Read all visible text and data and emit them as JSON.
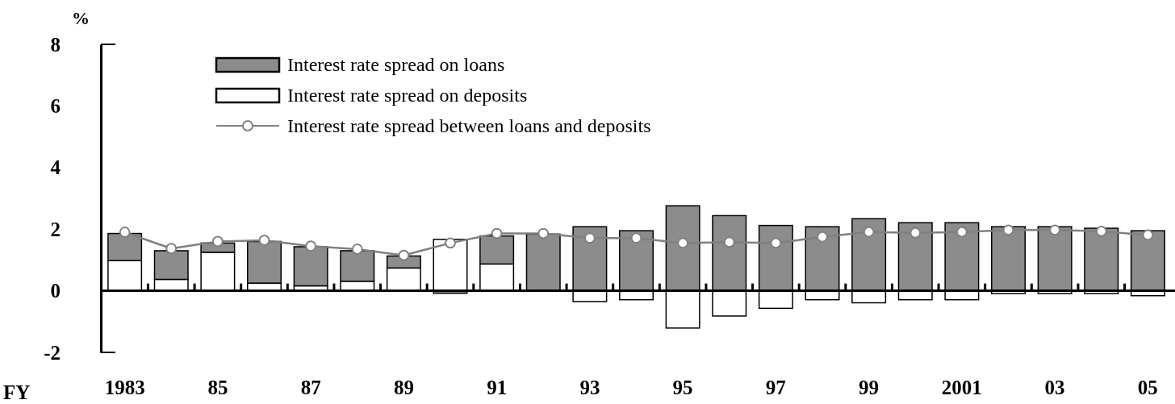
{
  "chart_data": {
    "type": "bar",
    "stacked": true,
    "ylabel": "%",
    "xlabel": "FY",
    "categories": [
      "1983",
      null,
      "85",
      null,
      "87",
      null,
      "89",
      null,
      "91",
      null,
      "93",
      null,
      "95",
      null,
      "97",
      null,
      "99",
      null,
      "2001",
      null,
      "03",
      null,
      "05"
    ],
    "series": [
      {
        "name": "Interest rate spread on deposits",
        "color": "#ffffff",
        "values": [
          0.98,
          0.37,
          1.25,
          0.25,
          0.16,
          0.31,
          0.74,
          1.67,
          0.87,
          0,
          -0.35,
          -0.29,
          -1.21,
          -0.82,
          -0.57,
          -0.29,
          -0.39,
          -0.29,
          -0.29,
          -0.09,
          -0.09,
          -0.09,
          -0.16
        ]
      },
      {
        "name": "Interest rate spread on loans",
        "color": "#8c8c8c",
        "values": [
          0.88,
          0.93,
          0.3,
          1.35,
          1.27,
          0.99,
          0.39,
          -0.08,
          0.91,
          1.84,
          2.08,
          1.95,
          2.76,
          2.44,
          2.12,
          2.08,
          2.34,
          2.21,
          2.21,
          2.08,
          2.08,
          2.03,
          1.95
        ]
      },
      {
        "name": "Interest rate spread between loans and deposits",
        "type": "line",
        "color": "#808080",
        "marker": "circle",
        "values": [
          1.9,
          1.37,
          1.6,
          1.64,
          1.45,
          1.35,
          1.15,
          1.55,
          1.86,
          1.86,
          1.71,
          1.71,
          1.55,
          1.58,
          1.55,
          1.75,
          1.91,
          1.88,
          1.91,
          1.97,
          1.97,
          1.93,
          1.81
        ]
      }
    ],
    "ylim": [
      -2,
      8
    ],
    "yticks": [
      -2,
      0,
      2,
      4,
      6,
      8
    ],
    "legend": "top left"
  }
}
